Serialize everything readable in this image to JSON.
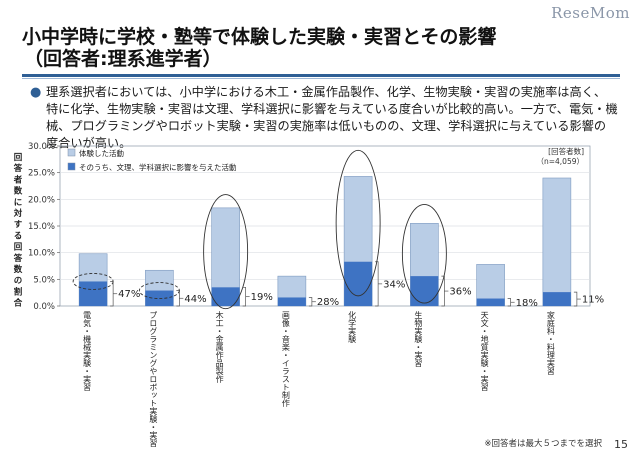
{
  "header": {
    "title_line1": "小中学時に学校・塾等で体験した実験・実習とその影響",
    "title_line2": "（回答者:理系進学者）",
    "brand": "ReseMom"
  },
  "summary": "理系選択者においては、小中学における木工・金属作品製作、化学、生物実験・実習の実施率は高く、特に化学、生物実験・実習は文理、学科選択に影響を与えている度合いが比較的高い。一方で、電気・機械、プログラミングやロボット実験・実習の実施率は低いものの、文理、学科選択に与えている影響の度合いが高い。",
  "chart_data": {
    "type": "bar",
    "ylabel": "回答者数に対する回答数の割合",
    "ylim": [
      0,
      30
    ],
    "yticks": [
      "0.0%",
      "5.0%",
      "10.0%",
      "15.0%",
      "20.0%",
      "25.0%",
      "30.0%"
    ],
    "respondents_label": "[回答者数]",
    "respondents_value": "（n=4,059）",
    "legend_position": "top-left",
    "categories": [
      "電気・機械実験・実習",
      "プログラミングやロボット実験・実習",
      "木工・金属作品製作",
      "画像・音楽・イラスト制作",
      "化学実験",
      "生物実験・実習",
      "天文・地質実験・実習",
      "家庭科・料理実習"
    ],
    "series": [
      {
        "name": "体験した活動",
        "color": "#b9cde6",
        "values": [
          9.8,
          6.7,
          18.4,
          5.6,
          24.3,
          15.5,
          7.8,
          24.0
        ]
      },
      {
        "name": "そのうち、文理、学科選択に影響を与えた活動",
        "color": "#3e73c3",
        "values": [
          4.6,
          2.9,
          3.5,
          1.6,
          8.3,
          5.6,
          1.4,
          2.6
        ]
      }
    ],
    "ratio_labels": [
      "47%",
      "44%",
      "19%",
      "28%",
      "34%",
      "36%",
      "18%",
      "11%"
    ],
    "highlight_solid": [
      2,
      4,
      5
    ],
    "highlight_dashed": [
      0,
      1
    ]
  },
  "footnote": "※回答者は最大５つまでを選択",
  "page_number": "15"
}
